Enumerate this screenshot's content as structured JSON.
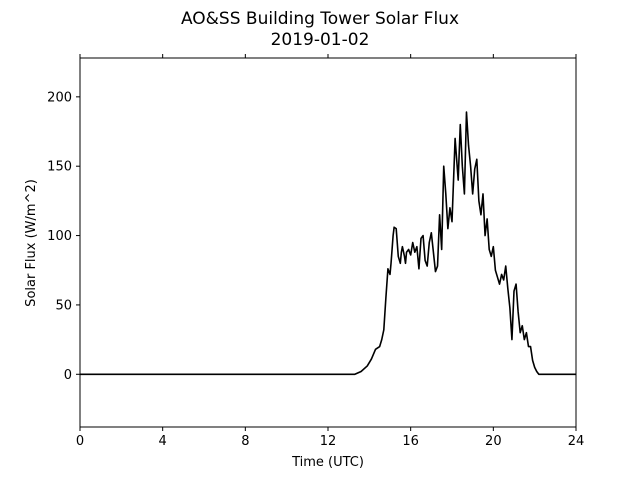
{
  "chart_data": {
    "type": "line",
    "title": "AO&SS Building Tower Solar Flux",
    "subtitle": "2019-01-02",
    "xlabel": "Time (UTC)",
    "ylabel": "Solar Flux (W/m^2)",
    "xlim": [
      0,
      24
    ],
    "ylim": [
      -38,
      228
    ],
    "xticks": [
      0,
      4,
      8,
      12,
      16,
      20,
      24
    ],
    "yticks": [
      0,
      50,
      100,
      150,
      200
    ],
    "grid": false,
    "legend": "none",
    "line_color": "#000000",
    "series": [
      {
        "x": [
          0,
          13.3,
          13.6,
          13.9,
          14.1,
          14.3,
          14.5,
          14.6,
          14.7,
          14.8,
          14.9,
          15.0,
          15.05,
          15.1,
          15.15,
          15.2,
          15.3,
          15.4,
          15.5,
          15.55,
          15.6,
          15.7,
          15.75,
          15.8,
          15.9,
          16.0,
          16.1,
          16.2,
          16.3,
          16.4,
          16.5,
          16.6,
          16.7,
          16.8,
          16.9,
          17.0,
          17.1,
          17.2,
          17.3,
          17.4,
          17.5,
          17.6,
          17.7,
          17.8,
          17.9,
          18.0,
          18.1,
          18.15,
          18.2,
          18.3,
          18.4,
          18.5,
          18.6,
          18.7,
          18.8,
          18.9,
          19.0,
          19.1,
          19.2,
          19.3,
          19.4,
          19.5,
          19.6,
          19.7,
          19.8,
          19.9,
          20.0,
          20.1,
          20.2,
          20.3,
          20.4,
          20.5,
          20.6,
          20.7,
          20.8,
          20.9,
          21.0,
          21.1,
          21.2,
          21.3,
          21.4,
          21.5,
          21.6,
          21.7,
          21.8,
          21.9,
          22.0,
          22.1,
          22.2,
          22.3,
          22.4,
          22.5,
          22.6,
          22.7,
          22.9,
          24
        ],
        "y": [
          0,
          0,
          2,
          6,
          11,
          18,
          20,
          25,
          32,
          55,
          76,
          72,
          80,
          90,
          100,
          106,
          105,
          85,
          80,
          88,
          92,
          85,
          80,
          88,
          90,
          86,
          95,
          88,
          92,
          76,
          98,
          100,
          82,
          78,
          95,
          102,
          88,
          74,
          78,
          115,
          90,
          150,
          130,
          105,
          120,
          110,
          150,
          170,
          160,
          140,
          180,
          150,
          130,
          189,
          165,
          150,
          130,
          148,
          155,
          125,
          115,
          130,
          100,
          112,
          90,
          85,
          92,
          75,
          70,
          65,
          72,
          68,
          78,
          62,
          48,
          25,
          60,
          65,
          45,
          30,
          35,
          25,
          30,
          20,
          20,
          10,
          5,
          2,
          0,
          0,
          0,
          0,
          0,
          0,
          0,
          0
        ]
      }
    ]
  }
}
